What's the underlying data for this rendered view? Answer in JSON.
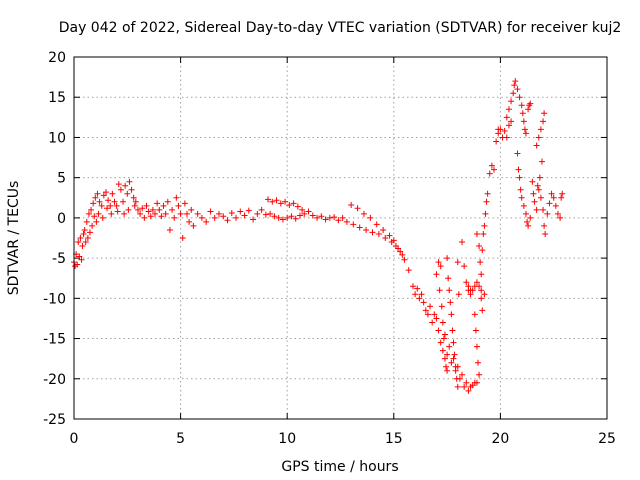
{
  "chart_data": {
    "type": "scatter",
    "title": "Day 042 of 2022, Sidereal Day-to-day VTEC variation (SDTVAR) for receiver kuj2",
    "xlabel": "GPS time / hours",
    "ylabel": "SDTVAR / TECUs",
    "xlim": [
      0,
      25
    ],
    "ylim": [
      -25,
      20
    ],
    "xticks": [
      0,
      5,
      10,
      15,
      20,
      25
    ],
    "yticks": [
      -25,
      -20,
      -15,
      -10,
      -5,
      0,
      5,
      10,
      15,
      20
    ],
    "grid": true,
    "marker": "+",
    "colors": {
      "series": "#ff0000",
      "grid": "#a0a0a0",
      "axis": "#000000"
    },
    "series": [
      {
        "name": "SDTVAR",
        "points": [
          [
            0.0,
            -5.5
          ],
          [
            0.05,
            -6.0
          ],
          [
            0.1,
            -4.5
          ],
          [
            0.15,
            -5.8
          ],
          [
            0.2,
            -3.0
          ],
          [
            0.25,
            -4.8
          ],
          [
            0.3,
            -2.5
          ],
          [
            0.35,
            -5.2
          ],
          [
            0.4,
            -3.5
          ],
          [
            0.45,
            -2.0
          ],
          [
            0.5,
            -1.5
          ],
          [
            0.55,
            -3.0
          ],
          [
            0.6,
            -0.5
          ],
          [
            0.65,
            -2.5
          ],
          [
            0.7,
            0.5
          ],
          [
            0.75,
            -1.8
          ],
          [
            0.8,
            1.0
          ],
          [
            0.85,
            -1.0
          ],
          [
            0.9,
            1.8
          ],
          [
            0.95,
            0.2
          ],
          [
            1.0,
            2.5
          ],
          [
            1.05,
            -0.5
          ],
          [
            1.1,
            3.0
          ],
          [
            1.15,
            0.5
          ],
          [
            1.2,
            2.0
          ],
          [
            1.3,
            1.5
          ],
          [
            1.35,
            0.0
          ],
          [
            1.4,
            2.8
          ],
          [
            1.5,
            3.2
          ],
          [
            1.55,
            1.2
          ],
          [
            1.6,
            2.2
          ],
          [
            1.7,
            1.5
          ],
          [
            1.75,
            0.5
          ],
          [
            1.8,
            3.0
          ],
          [
            1.9,
            2.0
          ],
          [
            2.0,
            1.5
          ],
          [
            2.05,
            0.8
          ],
          [
            2.1,
            4.2
          ],
          [
            2.2,
            3.5
          ],
          [
            2.3,
            2.0
          ],
          [
            2.35,
            0.5
          ],
          [
            2.4,
            4.0
          ],
          [
            2.5,
            3.0
          ],
          [
            2.55,
            1.0
          ],
          [
            2.6,
            4.5
          ],
          [
            2.7,
            3.5
          ],
          [
            2.8,
            2.5
          ],
          [
            2.85,
            1.5
          ],
          [
            2.9,
            2.0
          ],
          [
            3.0,
            1.0
          ],
          [
            3.1,
            0.5
          ],
          [
            3.2,
            1.2
          ],
          [
            3.3,
            0.0
          ],
          [
            3.4,
            1.5
          ],
          [
            3.5,
            0.8
          ],
          [
            3.6,
            0.2
          ],
          [
            3.7,
            1.0
          ],
          [
            3.8,
            0.5
          ],
          [
            3.9,
            1.8
          ],
          [
            4.0,
            1.0
          ],
          [
            4.1,
            0.2
          ],
          [
            4.2,
            1.5
          ],
          [
            4.3,
            0.5
          ],
          [
            4.4,
            2.0
          ],
          [
            4.5,
            -1.5
          ],
          [
            4.6,
            1.0
          ],
          [
            4.7,
            0.0
          ],
          [
            4.8,
            2.5
          ],
          [
            4.9,
            1.5
          ],
          [
            5.0,
            0.5
          ],
          [
            5.1,
            -2.5
          ],
          [
            5.2,
            1.8
          ],
          [
            5.3,
            0.5
          ],
          [
            5.4,
            -0.5
          ],
          [
            5.5,
            1.0
          ],
          [
            5.6,
            -1.0
          ],
          [
            5.8,
            0.5
          ],
          [
            6.0,
            0.0
          ],
          [
            6.2,
            -0.5
          ],
          [
            6.4,
            0.8
          ],
          [
            6.6,
            0.0
          ],
          [
            6.8,
            0.5
          ],
          [
            7.0,
            0.2
          ],
          [
            7.2,
            -0.3
          ],
          [
            7.4,
            0.6
          ],
          [
            7.6,
            0.0
          ],
          [
            7.8,
            0.8
          ],
          [
            8.0,
            0.3
          ],
          [
            8.2,
            0.9
          ],
          [
            8.4,
            -0.2
          ],
          [
            8.6,
            0.5
          ],
          [
            8.8,
            1.0
          ],
          [
            9.0,
            0.4
          ],
          [
            9.1,
            2.3
          ],
          [
            9.3,
            2.0
          ],
          [
            9.5,
            2.2
          ],
          [
            9.7,
            1.8
          ],
          [
            9.9,
            2.0
          ],
          [
            10.1,
            1.6
          ],
          [
            10.3,
            1.8
          ],
          [
            10.5,
            1.4
          ],
          [
            10.7,
            1.0
          ],
          [
            9.2,
            0.5
          ],
          [
            9.4,
            0.2
          ],
          [
            9.6,
            0.0
          ],
          [
            9.8,
            -0.2
          ],
          [
            10.0,
            0.0
          ],
          [
            10.2,
            0.2
          ],
          [
            10.4,
            -0.1
          ],
          [
            10.6,
            0.3
          ],
          [
            10.8,
            0.5
          ],
          [
            11.0,
            0.8
          ],
          [
            11.2,
            0.3
          ],
          [
            11.4,
            0.0
          ],
          [
            11.6,
            0.2
          ],
          [
            11.8,
            -0.2
          ],
          [
            12.0,
            0.0
          ],
          [
            12.2,
            0.1
          ],
          [
            12.4,
            -0.3
          ],
          [
            12.6,
            0.0
          ],
          [
            12.8,
            -0.5
          ],
          [
            13.0,
            1.6
          ],
          [
            13.1,
            -0.8
          ],
          [
            13.3,
            1.2
          ],
          [
            13.4,
            -1.2
          ],
          [
            13.6,
            0.5
          ],
          [
            13.7,
            -1.5
          ],
          [
            13.9,
            0.0
          ],
          [
            14.0,
            -1.8
          ],
          [
            14.2,
            -0.8
          ],
          [
            14.3,
            -2.0
          ],
          [
            14.5,
            -1.5
          ],
          [
            14.6,
            -2.5
          ],
          [
            14.8,
            -2.2
          ],
          [
            14.9,
            -3.0
          ],
          [
            15.0,
            -2.8
          ],
          [
            15.1,
            -3.5
          ],
          [
            15.2,
            -3.8
          ],
          [
            15.3,
            -4.2
          ],
          [
            15.4,
            -4.6
          ],
          [
            15.5,
            -5.2
          ],
          [
            15.9,
            -8.5
          ],
          [
            16.0,
            -9.5
          ],
          [
            16.1,
            -8.8
          ],
          [
            16.2,
            -10.0
          ],
          [
            16.4,
            -10.5
          ],
          [
            16.5,
            -11.5
          ],
          [
            16.6,
            -12.0
          ],
          [
            16.7,
            -11.0
          ],
          [
            16.8,
            -13.0
          ],
          [
            17.0,
            -12.5
          ],
          [
            17.1,
            -14.0
          ],
          [
            17.2,
            -15.5
          ],
          [
            17.3,
            -16.5
          ],
          [
            17.4,
            -14.5
          ],
          [
            17.5,
            -17.0
          ],
          [
            17.6,
            -16.0
          ],
          [
            17.7,
            -18.0
          ],
          [
            17.8,
            -17.5
          ],
          [
            17.9,
            -19.0
          ],
          [
            18.0,
            -18.5
          ],
          [
            18.1,
            -20.0
          ],
          [
            18.2,
            -19.5
          ],
          [
            18.3,
            -21.0
          ],
          [
            18.4,
            -20.5
          ],
          [
            18.5,
            -21.5
          ],
          [
            18.6,
            -21.0
          ],
          [
            18.7,
            -20.8
          ],
          [
            18.8,
            -20.5
          ],
          [
            18.9,
            -20.5
          ],
          [
            17.0,
            -7.0
          ],
          [
            17.1,
            -5.5
          ],
          [
            17.2,
            -6.0
          ],
          [
            17.15,
            -9.0
          ],
          [
            17.25,
            -11.0
          ],
          [
            17.3,
            -13.0
          ],
          [
            17.35,
            -15.0
          ],
          [
            17.4,
            -17.5
          ],
          [
            17.45,
            -18.5
          ],
          [
            17.5,
            -19.0
          ],
          [
            17.5,
            -5.0
          ],
          [
            17.55,
            -7.5
          ],
          [
            17.6,
            -9.0
          ],
          [
            17.65,
            -10.5
          ],
          [
            17.7,
            -12.0
          ],
          [
            17.75,
            -14.0
          ],
          [
            17.8,
            -15.5
          ],
          [
            17.85,
            -17.0
          ],
          [
            17.9,
            -18.5
          ],
          [
            17.95,
            -20.0
          ],
          [
            18.0,
            -21.0
          ],
          [
            18.2,
            -3.0
          ],
          [
            18.3,
            -6.0
          ],
          [
            18.4,
            -8.0
          ],
          [
            18.5,
            -9.0
          ],
          [
            18.6,
            -9.5
          ],
          [
            18.7,
            -9.0
          ],
          [
            18.8,
            -8.5
          ],
          [
            18.9,
            -8.0
          ],
          [
            19.0,
            -8.5
          ],
          [
            19.1,
            -9.0
          ],
          [
            18.8,
            -12.0
          ],
          [
            18.85,
            -14.0
          ],
          [
            18.9,
            -16.0
          ],
          [
            18.95,
            -18.0
          ],
          [
            19.0,
            -19.5
          ],
          [
            18.9,
            -2.0
          ],
          [
            19.0,
            -3.5
          ],
          [
            19.05,
            -5.5
          ],
          [
            19.1,
            -7.0
          ],
          [
            19.15,
            -4.0
          ],
          [
            19.2,
            -2.0
          ],
          [
            19.25,
            -1.0
          ],
          [
            19.3,
            0.5
          ],
          [
            19.35,
            2.0
          ],
          [
            19.4,
            3.0
          ],
          [
            19.5,
            5.5
          ],
          [
            19.6,
            6.5
          ],
          [
            19.7,
            6.0
          ],
          [
            19.8,
            9.5
          ],
          [
            19.9,
            10.5
          ],
          [
            20.0,
            11.0
          ],
          [
            20.1,
            10.0
          ],
          [
            20.2,
            10.8
          ],
          [
            20.3,
            12.5
          ],
          [
            20.4,
            13.5
          ],
          [
            20.5,
            14.5
          ],
          [
            20.6,
            15.5
          ],
          [
            20.65,
            16.5
          ],
          [
            20.7,
            17.0
          ],
          [
            20.8,
            16.0
          ],
          [
            20.9,
            15.0
          ],
          [
            21.0,
            14.0
          ],
          [
            21.05,
            13.0
          ],
          [
            21.1,
            12.0
          ],
          [
            21.15,
            11.0
          ],
          [
            21.2,
            10.5
          ],
          [
            21.3,
            13.5
          ],
          [
            21.35,
            14.0
          ],
          [
            21.4,
            14.2
          ],
          [
            20.8,
            8.0
          ],
          [
            20.85,
            6.0
          ],
          [
            20.9,
            5.0
          ],
          [
            20.95,
            3.5
          ],
          [
            21.0,
            2.5
          ],
          [
            21.1,
            1.5
          ],
          [
            21.2,
            0.5
          ],
          [
            21.25,
            -0.5
          ],
          [
            21.3,
            -1.0
          ],
          [
            21.4,
            0.0
          ],
          [
            21.5,
            4.5
          ],
          [
            21.55,
            3.0
          ],
          [
            21.6,
            2.0
          ],
          [
            21.7,
            1.0
          ],
          [
            21.8,
            3.5
          ],
          [
            21.9,
            2.5
          ],
          [
            22.0,
            1.0
          ],
          [
            22.05,
            -1.0
          ],
          [
            22.1,
            -2.0
          ],
          [
            22.2,
            0.5
          ],
          [
            22.3,
            1.8
          ],
          [
            22.4,
            3.0
          ],
          [
            22.5,
            2.5
          ],
          [
            22.6,
            1.5
          ],
          [
            22.7,
            0.5
          ],
          [
            22.8,
            0.0
          ],
          [
            22.85,
            2.5
          ],
          [
            22.9,
            3.0
          ],
          [
            21.7,
            9.0
          ],
          [
            21.8,
            10.0
          ],
          [
            21.9,
            11.0
          ],
          [
            22.0,
            12.0
          ],
          [
            22.05,
            13.0
          ],
          [
            21.95,
            7.0
          ],
          [
            21.85,
            5.0
          ],
          [
            21.75,
            4.0
          ],
          [
            20.3,
            10.0
          ],
          [
            20.4,
            11.5
          ],
          [
            20.5,
            12.0
          ],
          [
            19.9,
            11.0
          ],
          [
            19.1,
            -10.0
          ],
          [
            19.15,
            -11.5
          ],
          [
            19.25,
            -9.5
          ],
          [
            18.6,
            -9.0
          ],
          [
            18.5,
            -8.5
          ],
          [
            18.0,
            -5.5
          ],
          [
            18.05,
            -9.5
          ],
          [
            16.9,
            -12.0
          ],
          [
            16.3,
            -9.5
          ],
          [
            15.7,
            -6.5
          ]
        ]
      }
    ]
  }
}
